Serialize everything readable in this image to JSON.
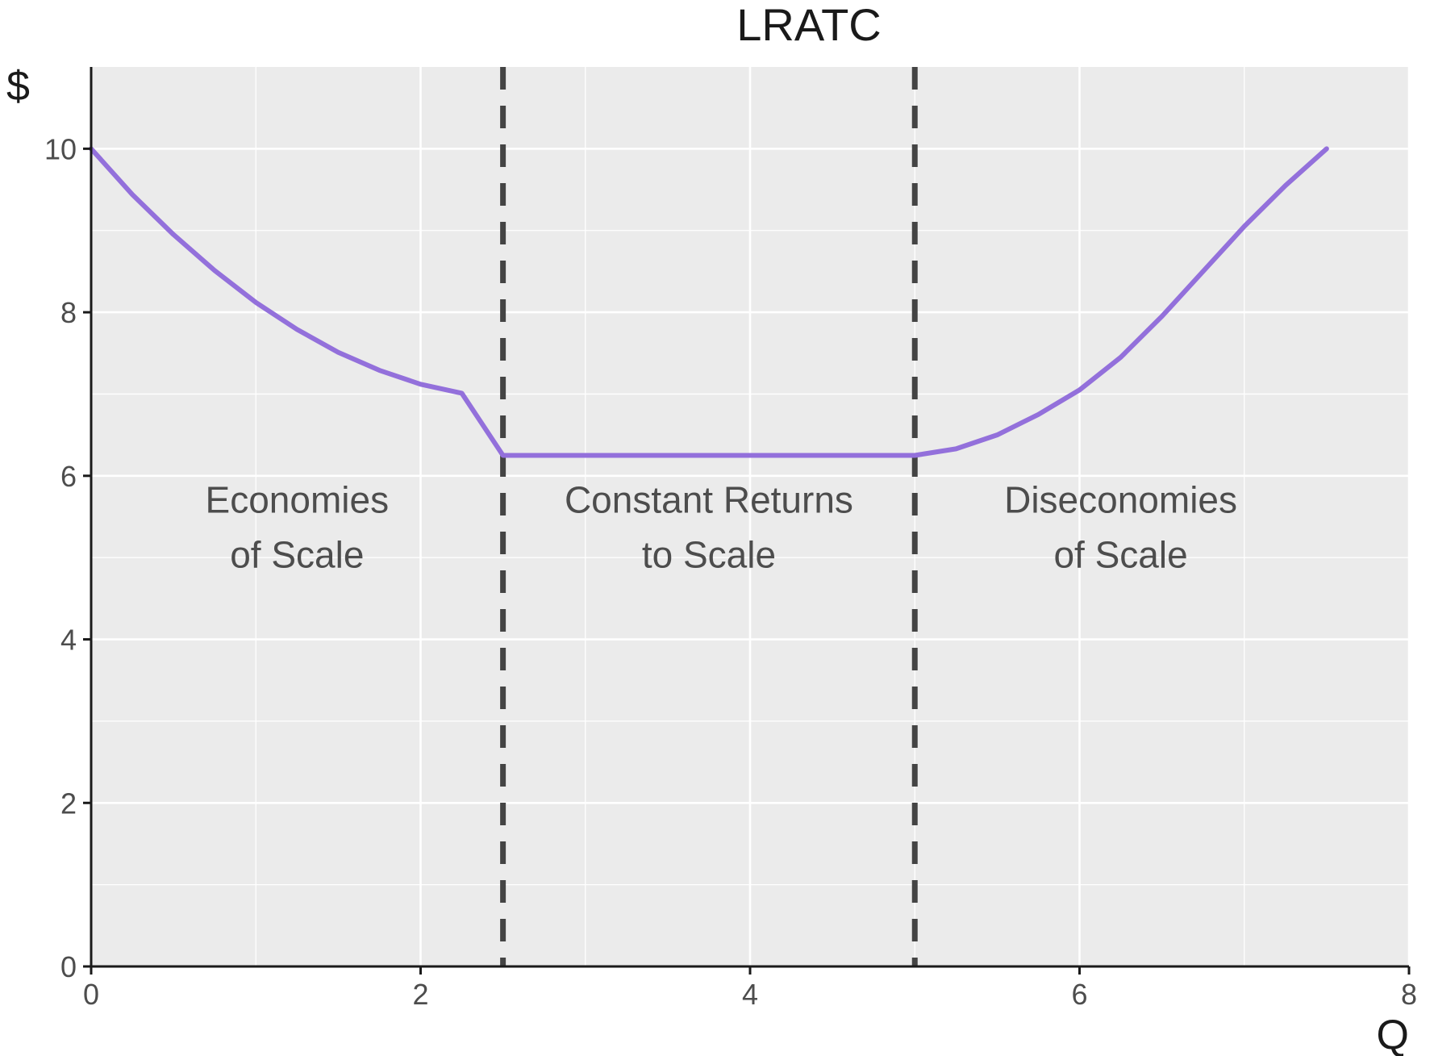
{
  "chart_data": {
    "type": "line",
    "title": "LRATC",
    "xlabel": "Q",
    "ylabel": "$",
    "xlim": [
      0,
      8
    ],
    "ylim": [
      0,
      11
    ],
    "x_ticks": [
      0,
      2,
      4,
      6,
      8
    ],
    "y_ticks": [
      0,
      2,
      4,
      6,
      8,
      10
    ],
    "grid": true,
    "colors": {
      "panel": "#ebebeb",
      "grid": "#ffffff",
      "curve": "#9370db",
      "vline": "#444444",
      "axis": "#1a1a1a"
    },
    "series": [
      {
        "x": [
          0,
          0.25,
          0.5,
          0.75,
          1,
          1.25,
          1.5,
          1.75,
          2,
          2.25,
          2.5,
          2.75,
          3,
          3.25,
          3.5,
          3.75,
          4,
          4.25,
          4.5,
          4.75,
          5,
          5.25,
          5.5,
          5.75,
          6,
          6.25,
          6.5,
          6.75,
          7,
          7.25,
          7.5
        ],
        "y": [
          10,
          9.44,
          8.95,
          8.51,
          8.12,
          7.79,
          7.51,
          7.29,
          7.12,
          7.01,
          6.25,
          6.25,
          6.25,
          6.25,
          6.25,
          6.25,
          6.25,
          6.25,
          6.25,
          6.25,
          6.25,
          6.33,
          6.5,
          6.75,
          7.05,
          7.45,
          7.95,
          8.5,
          9.05,
          9.55,
          10
        ]
      }
    ],
    "vlines": [
      2.5,
      5
    ],
    "annotations": [
      {
        "lines": [
          "Economies",
          "of Scale"
        ],
        "x": 1.25,
        "y": 5.55
      },
      {
        "lines": [
          "Constant Returns",
          "to Scale"
        ],
        "x": 3.75,
        "y": 5.55
      },
      {
        "lines": [
          "Diseconomies",
          "of Scale"
        ],
        "x": 6.25,
        "y": 5.55
      }
    ]
  }
}
